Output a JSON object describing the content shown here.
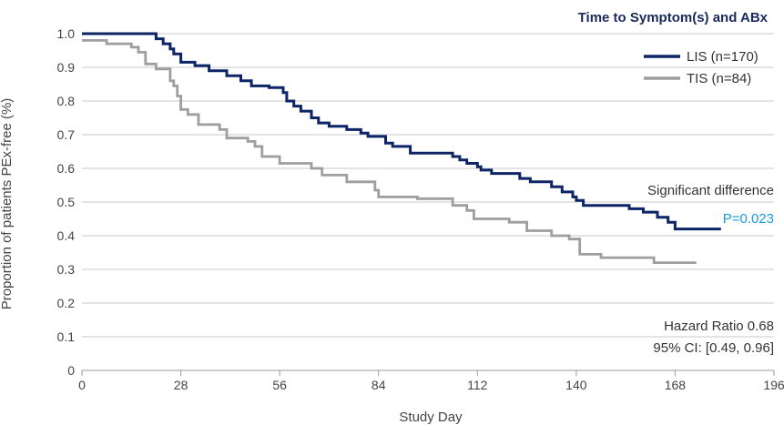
{
  "chart_data": {
    "type": "line",
    "title": "Time to Symptom(s) and ABx",
    "xlabel": "Study Day",
    "ylabel": "Proportion of patients PEx-free (%)",
    "xlim": [
      0,
      196
    ],
    "ylim": [
      0,
      1.0
    ],
    "x_ticks": [
      "0",
      "28",
      "56",
      "84",
      "112",
      "140",
      "168",
      "196"
    ],
    "y_ticks": [
      "0",
      "0.1",
      "0.2",
      "0.3",
      "0.4",
      "0.5",
      "0.6",
      "0.7",
      "0.8",
      "0.9",
      "1.0"
    ],
    "grid": true,
    "legend_position": "top-right",
    "step": true,
    "series": [
      {
        "name": "LIS (n=170)",
        "color": "#0d2566",
        "points": [
          [
            0,
            1.0
          ],
          [
            21,
            1.0
          ],
          [
            21,
            0.985
          ],
          [
            23,
            0.985
          ],
          [
            23,
            0.97
          ],
          [
            25,
            0.97
          ],
          [
            25,
            0.955
          ],
          [
            26,
            0.955
          ],
          [
            26,
            0.94
          ],
          [
            28,
            0.94
          ],
          [
            28,
            0.915
          ],
          [
            32,
            0.915
          ],
          [
            32,
            0.905
          ],
          [
            36,
            0.905
          ],
          [
            36,
            0.89
          ],
          [
            41,
            0.89
          ],
          [
            41,
            0.875
          ],
          [
            45,
            0.875
          ],
          [
            45,
            0.86
          ],
          [
            48,
            0.86
          ],
          [
            48,
            0.845
          ],
          [
            53,
            0.845
          ],
          [
            53,
            0.84
          ],
          [
            57,
            0.84
          ],
          [
            57,
            0.825
          ],
          [
            58,
            0.825
          ],
          [
            58,
            0.8
          ],
          [
            60,
            0.8
          ],
          [
            60,
            0.785
          ],
          [
            62,
            0.785
          ],
          [
            62,
            0.77
          ],
          [
            65,
            0.77
          ],
          [
            65,
            0.75
          ],
          [
            67,
            0.75
          ],
          [
            67,
            0.735
          ],
          [
            70,
            0.735
          ],
          [
            70,
            0.725
          ],
          [
            75,
            0.725
          ],
          [
            75,
            0.715
          ],
          [
            79,
            0.715
          ],
          [
            79,
            0.705
          ],
          [
            81,
            0.705
          ],
          [
            81,
            0.695
          ],
          [
            86,
            0.695
          ],
          [
            86,
            0.675
          ],
          [
            88,
            0.675
          ],
          [
            88,
            0.665
          ],
          [
            93,
            0.665
          ],
          [
            93,
            0.645
          ],
          [
            105,
            0.645
          ],
          [
            105,
            0.635
          ],
          [
            107,
            0.635
          ],
          [
            107,
            0.625
          ],
          [
            109,
            0.625
          ],
          [
            109,
            0.615
          ],
          [
            112,
            0.615
          ],
          [
            112,
            0.605
          ],
          [
            113,
            0.605
          ],
          [
            113,
            0.595
          ],
          [
            116,
            0.595
          ],
          [
            116,
            0.585
          ],
          [
            124,
            0.585
          ],
          [
            124,
            0.57
          ],
          [
            127,
            0.57
          ],
          [
            127,
            0.56
          ],
          [
            133,
            0.56
          ],
          [
            133,
            0.545
          ],
          [
            136,
            0.545
          ],
          [
            136,
            0.53
          ],
          [
            139,
            0.53
          ],
          [
            139,
            0.515
          ],
          [
            140,
            0.515
          ],
          [
            140,
            0.505
          ],
          [
            142,
            0.505
          ],
          [
            142,
            0.49
          ],
          [
            155,
            0.49
          ],
          [
            155,
            0.48
          ],
          [
            159,
            0.48
          ],
          [
            159,
            0.47
          ],
          [
            163,
            0.47
          ],
          [
            163,
            0.455
          ],
          [
            166,
            0.455
          ],
          [
            166,
            0.44
          ],
          [
            168,
            0.44
          ],
          [
            168,
            0.42
          ],
          [
            181,
            0.42
          ]
        ]
      },
      {
        "name": "TIS (n=84)",
        "color": "#9e9e9e",
        "points": [
          [
            0,
            0.98
          ],
          [
            7,
            0.98
          ],
          [
            7,
            0.97
          ],
          [
            14,
            0.97
          ],
          [
            14,
            0.96
          ],
          [
            16,
            0.96
          ],
          [
            16,
            0.945
          ],
          [
            18,
            0.945
          ],
          [
            18,
            0.91
          ],
          [
            21,
            0.91
          ],
          [
            21,
            0.895
          ],
          [
            25,
            0.895
          ],
          [
            25,
            0.86
          ],
          [
            26,
            0.86
          ],
          [
            26,
            0.845
          ],
          [
            27,
            0.845
          ],
          [
            27,
            0.815
          ],
          [
            28,
            0.815
          ],
          [
            28,
            0.775
          ],
          [
            30,
            0.775
          ],
          [
            30,
            0.76
          ],
          [
            33,
            0.76
          ],
          [
            33,
            0.73
          ],
          [
            39,
            0.73
          ],
          [
            39,
            0.715
          ],
          [
            41,
            0.715
          ],
          [
            41,
            0.69
          ],
          [
            47,
            0.69
          ],
          [
            47,
            0.68
          ],
          [
            49,
            0.68
          ],
          [
            49,
            0.665
          ],
          [
            51,
            0.665
          ],
          [
            51,
            0.635
          ],
          [
            56,
            0.635
          ],
          [
            56,
            0.615
          ],
          [
            65,
            0.615
          ],
          [
            65,
            0.6
          ],
          [
            68,
            0.6
          ],
          [
            68,
            0.58
          ],
          [
            75,
            0.58
          ],
          [
            75,
            0.56
          ],
          [
            83,
            0.56
          ],
          [
            83,
            0.535
          ],
          [
            84,
            0.535
          ],
          [
            84,
            0.515
          ],
          [
            95,
            0.515
          ],
          [
            95,
            0.51
          ],
          [
            105,
            0.51
          ],
          [
            105,
            0.49
          ],
          [
            109,
            0.49
          ],
          [
            109,
            0.475
          ],
          [
            111,
            0.475
          ],
          [
            111,
            0.45
          ],
          [
            121,
            0.45
          ],
          [
            121,
            0.44
          ],
          [
            126,
            0.44
          ],
          [
            126,
            0.415
          ],
          [
            133,
            0.415
          ],
          [
            133,
            0.4
          ],
          [
            138,
            0.4
          ],
          [
            138,
            0.39
          ],
          [
            141,
            0.39
          ],
          [
            141,
            0.345
          ],
          [
            147,
            0.345
          ],
          [
            147,
            0.335
          ],
          [
            162,
            0.335
          ],
          [
            162,
            0.32
          ],
          [
            174,
            0.32
          ]
        ]
      }
    ],
    "annotations": {
      "significance": "Significant difference",
      "p_value": "P=0.023",
      "p_value_color": "#1a9ad6",
      "hazard_ratio": "Hazard Ratio 0.68",
      "ci": "95% CI: [0.49, 0.96]"
    }
  }
}
